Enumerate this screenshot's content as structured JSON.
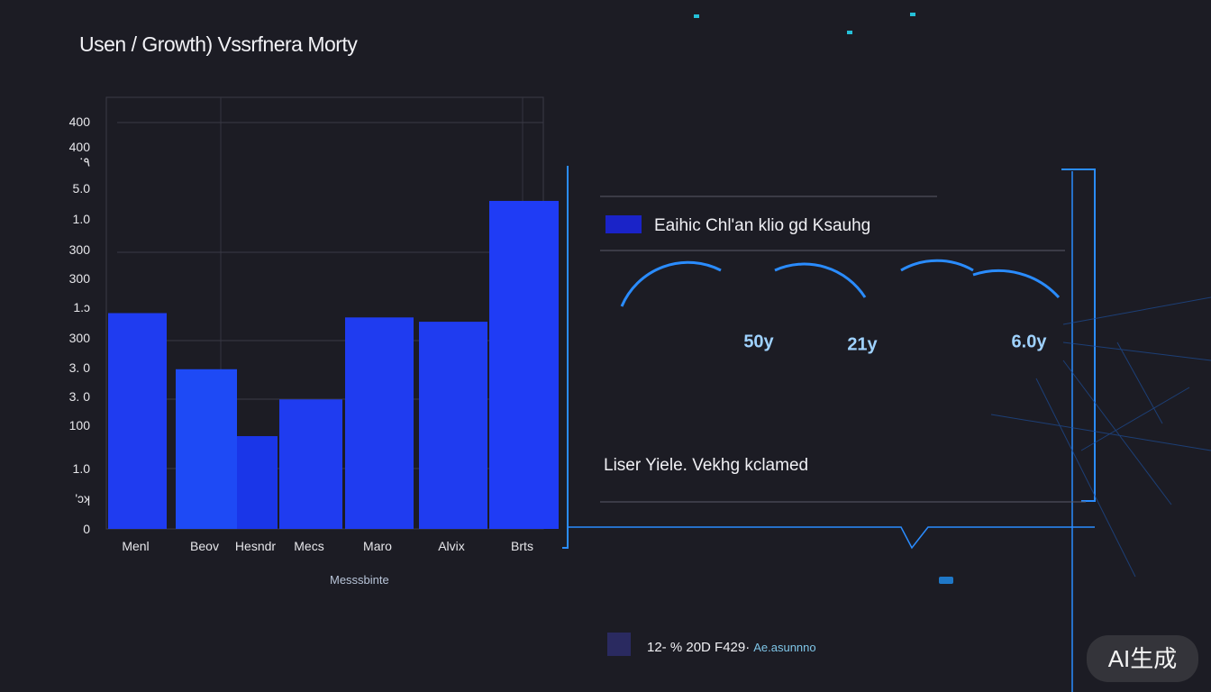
{
  "chart_data": {
    "type": "bar",
    "title": "Usen / Growth) Vssrfnera Morty",
    "xlabel": "Messsbinte",
    "ylabel": "",
    "categories": [
      "Menl",
      "Beov",
      "Hesndr",
      "Mecs",
      "Maro",
      "Alvix",
      "Brts"
    ],
    "values": [
      50,
      37,
      21.5,
      30,
      49,
      48,
      76
    ],
    "ylim": [
      0,
      100
    ],
    "y_tick_labels": [
      "0",
      "'ɔʞ",
      "1.0",
      "100",
      "3. 0",
      "3. 0",
      "300",
      "1.ɔ",
      "300",
      "300",
      "1.0",
      "5.0",
      "ॱ٩",
      "400",
      "400"
    ],
    "grid": true,
    "bar_color": "#1f3cf0"
  },
  "legend": {
    "label": "Eaihic Chl'an klio gd Ksauhg",
    "color": "#1a23c8"
  },
  "panel": {
    "text": "Liser Yiele. Vekhg kclamed",
    "circles": [
      "50y",
      "21y",
      "6.0y"
    ]
  },
  "footer": {
    "text": "12- % 20D F429·",
    "sub": "Ae.asunnno"
  },
  "watermark": "AI生成",
  "colors": {
    "background": "#1c1c24",
    "accent": "#2a8cff"
  }
}
